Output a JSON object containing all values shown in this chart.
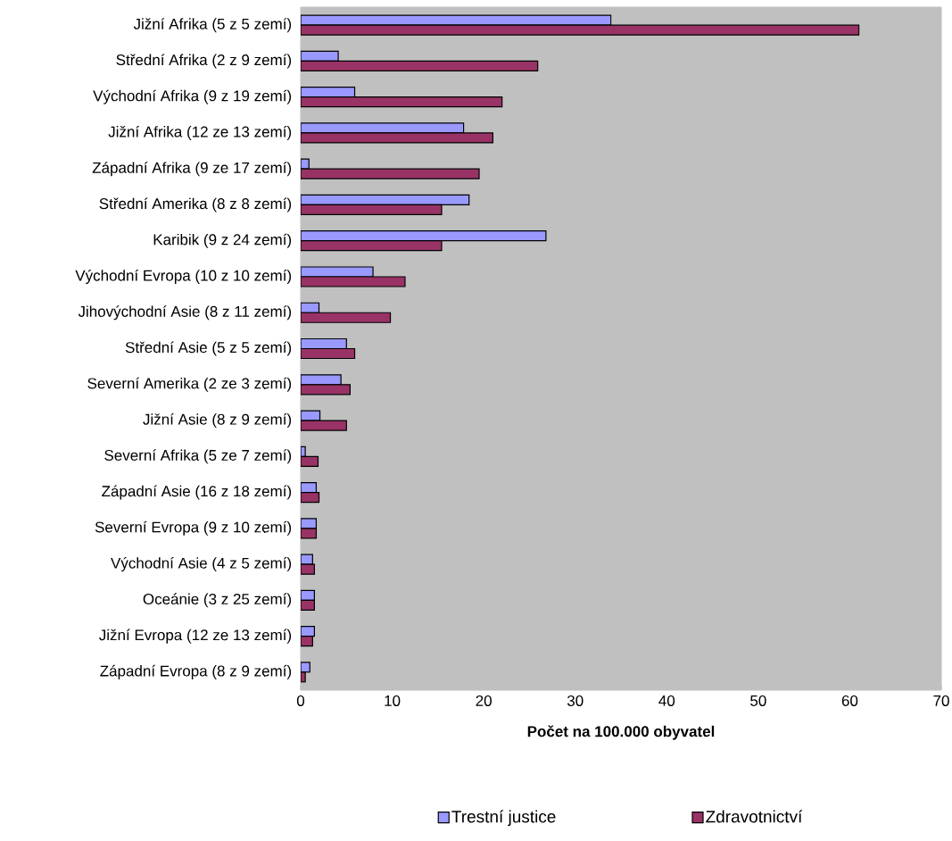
{
  "chart_data": {
    "type": "bar",
    "orientation": "horizontal",
    "xlabel": "Počet na 100.000 obyvatel",
    "categories": [
      "Jižní Afrika (5 z 5 zemí)",
      "Střední Afrika (2 z 9 zemí)",
      "Východní Afrika (9 z 19 zemí)",
      "Jižní Afrika (12 ze 13 zemí)",
      "Západní Afrika (9 ze 17 zemí)",
      "Střední Amerika (8 z 8 zemí)",
      "Karibik (9 z 24 zemí)",
      "Východní Evropa (10 z 10 zemí)",
      "Jihovýchodní Asie (8 z 11 zemí)",
      "Střední Asie (5 z 5 zemí)",
      "Severní Amerika (2 ze 3 zemí)",
      "Jižní Asie (8 z 9 zemí)",
      "Severní Afrika (5 ze 7 zemí)",
      "Západní Asie (16 z 18 zemí)",
      "Severní Evropa (9 z 10 zemí)",
      "Východní Asie (4 z 5 zemí)",
      "Oceánie (3 z 25 zemí)",
      "Jižní Evropa (12 ze 13 zemí)",
      "Západní Evropa (8 z 9 zemí)"
    ],
    "series": [
      {
        "name": "Trestní justice",
        "color": "#9999ff",
        "values": [
          33.9,
          4.1,
          5.9,
          17.8,
          0.9,
          18.4,
          26.8,
          7.9,
          2.0,
          5.0,
          4.4,
          2.1,
          0.5,
          1.7,
          1.7,
          1.3,
          1.5,
          1.5,
          1.0
        ]
      },
      {
        "name": "Zdravotnictví",
        "color": "#993366",
        "values": [
          61.0,
          25.9,
          22.0,
          21.0,
          19.5,
          15.4,
          15.4,
          11.4,
          9.8,
          5.9,
          5.4,
          5.0,
          1.9,
          2.0,
          1.7,
          1.5,
          1.5,
          1.3,
          0.5
        ]
      }
    ],
    "xlim": [
      0,
      70
    ],
    "xticks": [
      0,
      10,
      20,
      30,
      40,
      50,
      60,
      70
    ],
    "grid": false,
    "legend": "bottom"
  }
}
